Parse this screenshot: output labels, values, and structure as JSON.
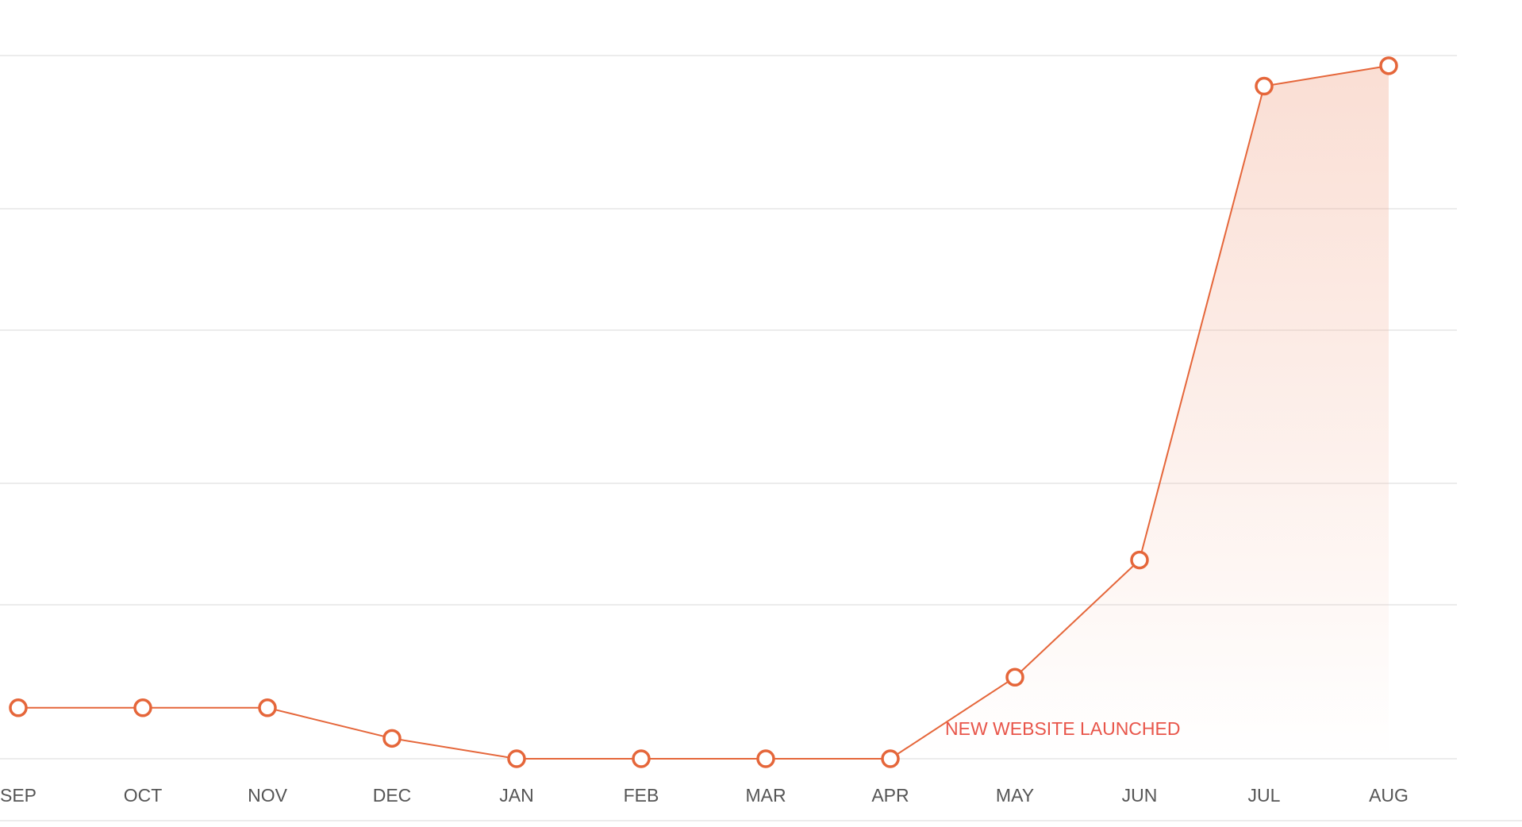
{
  "chart_data": {
    "type": "area",
    "categories": [
      "SEP",
      "OCT",
      "NOV",
      "DEC",
      "JAN",
      "FEB",
      "MAR",
      "APR",
      "MAY",
      "JUN",
      "JUL",
      "AUG"
    ],
    "series": [
      {
        "values": [
          10,
          10,
          10,
          4,
          0,
          0,
          0,
          0,
          16,
          39,
          132,
          136
        ]
      }
    ],
    "ylim": [
      0,
      138
    ],
    "grid": true,
    "annotations": [
      {
        "text": "NEW WEBSITE LAUNCHED",
        "category": "APR"
      }
    ],
    "colors": {
      "line": "#e5663a",
      "fill": "#f2a98e",
      "annotation": "#e8554a",
      "grid": "#e6e6e6",
      "tick_text": "#555555"
    }
  }
}
